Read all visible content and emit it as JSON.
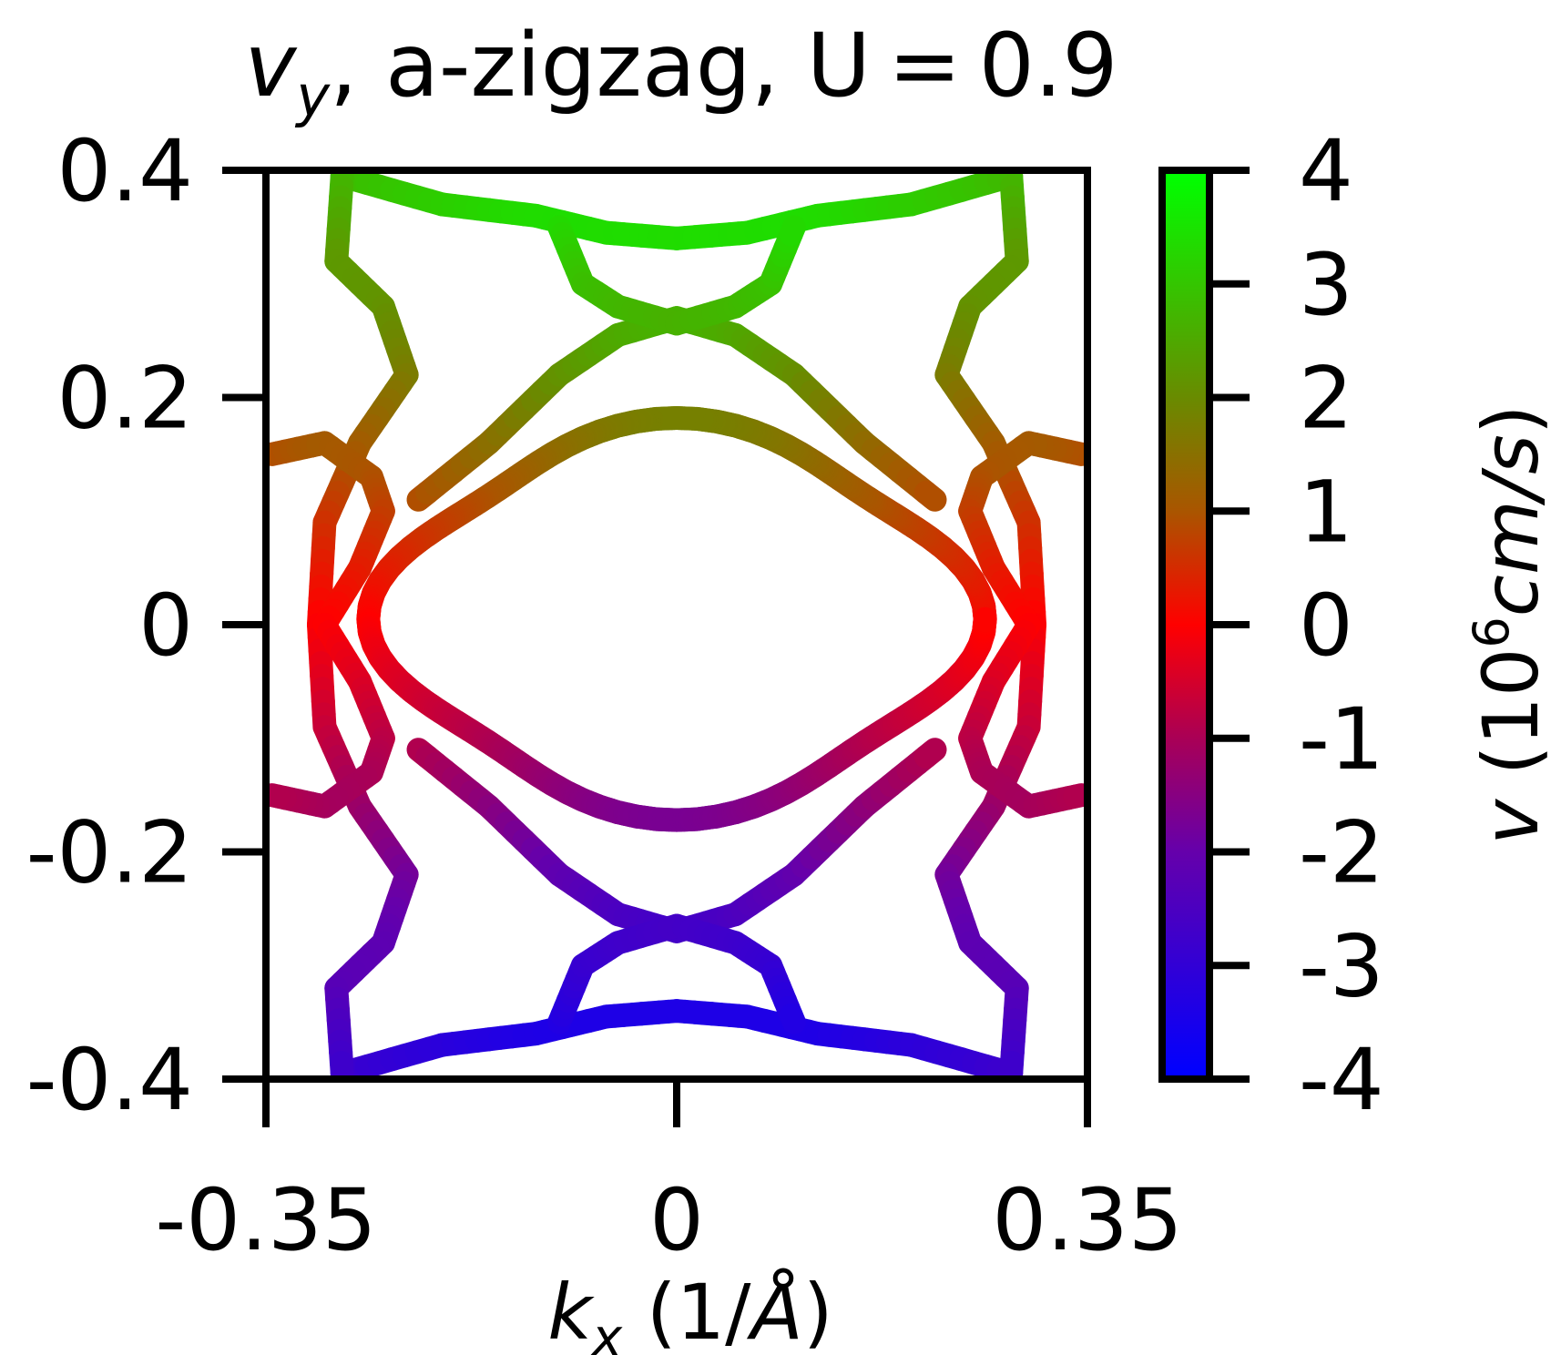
{
  "chart_data": {
    "type": "heatmap",
    "title_parts": {
      "var": "v",
      "sub": "y",
      "rest": ", a-zigzag, U = 0.9"
    },
    "xlabel_parts": {
      "var": "k",
      "sub": "x",
      "rest": " (1/",
      "unit": "Å",
      "close": ")"
    },
    "colorbar_label_parts": {
      "var": "v",
      "open": " (10",
      "exp": "6",
      "unit": "cm/s",
      "close": ")"
    },
    "xlim": [
      -0.35,
      0.35
    ],
    "ylim": [
      -0.4,
      0.4
    ],
    "clim": [
      -4,
      4
    ],
    "x_ticks": [
      -0.35,
      0,
      0.35
    ],
    "x_tick_labels": [
      "-0.35",
      "0",
      "0.35"
    ],
    "y_ticks": [
      -0.4,
      -0.2,
      0,
      0.2,
      0.4
    ],
    "y_tick_labels": [
      "-0.4",
      "-0.2",
      "0",
      "0.2",
      "0.4"
    ],
    "colorbar_ticks": [
      -4,
      -3,
      -2,
      -1,
      0,
      1,
      2,
      3,
      4
    ],
    "colorbar_tick_labels": [
      "-4",
      "-3",
      "-2",
      "-1",
      "0",
      "1",
      "2",
      "3",
      "4"
    ],
    "colormap": [
      {
        "value": -4,
        "color": "#0000ff"
      },
      {
        "value": -2,
        "color": "#6600aa"
      },
      {
        "value": -1,
        "color": "#aa0055"
      },
      {
        "value": 0,
        "color": "#ff0000"
      },
      {
        "value": 1,
        "color": "#aa5500"
      },
      {
        "value": 2,
        "color": "#6a8a00"
      },
      {
        "value": 4,
        "color": "#00ff00"
      }
    ],
    "bands": [
      {
        "name": "central-pocket",
        "kind": "ellipse",
        "cx": 0,
        "cy": 0.005,
        "rx": 0.245,
        "ry": 0.165,
        "wobble": 0.012
      },
      {
        "name": "top-arc",
        "kind": "path",
        "points": [
          [
            -0.285,
            0.395
          ],
          [
            -0.2,
            0.37
          ],
          [
            -0.12,
            0.36
          ],
          [
            -0.06,
            0.345
          ],
          [
            0,
            0.34
          ],
          [
            0.06,
            0.345
          ],
          [
            0.12,
            0.36
          ],
          [
            0.2,
            0.37
          ],
          [
            0.285,
            0.395
          ]
        ]
      },
      {
        "name": "bottom-arc",
        "kind": "path",
        "points": [
          [
            -0.285,
            -0.395
          ],
          [
            -0.2,
            -0.37
          ],
          [
            -0.12,
            -0.36
          ],
          [
            -0.06,
            -0.345
          ],
          [
            0,
            -0.34
          ],
          [
            0.06,
            -0.345
          ],
          [
            0.12,
            -0.36
          ],
          [
            0.2,
            -0.37
          ],
          [
            0.285,
            -0.395
          ]
        ]
      },
      {
        "name": "upper-inner-arc",
        "kind": "path",
        "points": [
          [
            -0.22,
            0.11
          ],
          [
            -0.16,
            0.16
          ],
          [
            -0.1,
            0.22
          ],
          [
            -0.05,
            0.255
          ],
          [
            0,
            0.27
          ],
          [
            0.05,
            0.255
          ],
          [
            0.1,
            0.22
          ],
          [
            0.16,
            0.16
          ],
          [
            0.22,
            0.11
          ]
        ]
      },
      {
        "name": "lower-inner-arc",
        "kind": "path",
        "points": [
          [
            -0.22,
            -0.11
          ],
          [
            -0.16,
            -0.16
          ],
          [
            -0.1,
            -0.22
          ],
          [
            -0.05,
            -0.255
          ],
          [
            0,
            -0.27
          ],
          [
            0.05,
            -0.255
          ],
          [
            0.1,
            -0.22
          ],
          [
            0.16,
            -0.16
          ],
          [
            0.22,
            -0.11
          ]
        ]
      },
      {
        "name": "left-lobe",
        "kind": "path",
        "points": [
          [
            -0.285,
            0.395
          ],
          [
            -0.29,
            0.32
          ],
          [
            -0.25,
            0.28
          ],
          [
            -0.23,
            0.22
          ],
          [
            -0.27,
            0.16
          ],
          [
            -0.3,
            0.09
          ],
          [
            -0.305,
            0
          ],
          [
            -0.3,
            -0.09
          ],
          [
            -0.27,
            -0.16
          ],
          [
            -0.23,
            -0.22
          ],
          [
            -0.25,
            -0.28
          ],
          [
            -0.29,
            -0.32
          ],
          [
            -0.285,
            -0.395
          ]
        ]
      },
      {
        "name": "right-lobe",
        "kind": "path",
        "points": [
          [
            0.285,
            0.395
          ],
          [
            0.29,
            0.32
          ],
          [
            0.25,
            0.28
          ],
          [
            0.23,
            0.22
          ],
          [
            0.27,
            0.16
          ],
          [
            0.3,
            0.09
          ],
          [
            0.305,
            0
          ],
          [
            0.3,
            -0.09
          ],
          [
            0.27,
            -0.16
          ],
          [
            0.23,
            -0.22
          ],
          [
            0.25,
            -0.28
          ],
          [
            0.29,
            -0.32
          ],
          [
            0.285,
            -0.395
          ]
        ]
      },
      {
        "name": "left-edge-loop",
        "kind": "path",
        "points": [
          [
            -0.345,
            0.15
          ],
          [
            -0.3,
            0.16
          ],
          [
            -0.26,
            0.13
          ],
          [
            -0.25,
            0.1
          ],
          [
            -0.27,
            0.05
          ],
          [
            -0.3,
            0
          ],
          [
            -0.27,
            -0.05
          ],
          [
            -0.25,
            -0.1
          ],
          [
            -0.26,
            -0.13
          ],
          [
            -0.3,
            -0.16
          ],
          [
            -0.345,
            -0.15
          ]
        ]
      },
      {
        "name": "right-edge-loop",
        "kind": "path",
        "points": [
          [
            0.345,
            0.15
          ],
          [
            0.3,
            0.16
          ],
          [
            0.26,
            0.13
          ],
          [
            0.25,
            0.1
          ],
          [
            0.27,
            0.05
          ],
          [
            0.3,
            0
          ],
          [
            0.27,
            -0.05
          ],
          [
            0.25,
            -0.1
          ],
          [
            0.26,
            -0.13
          ],
          [
            0.3,
            -0.16
          ],
          [
            0.345,
            -0.15
          ]
        ]
      },
      {
        "name": "neck-upper",
        "kind": "path",
        "points": [
          [
            -0.1,
            0.35
          ],
          [
            -0.08,
            0.3
          ],
          [
            -0.05,
            0.28
          ],
          [
            0,
            0.265
          ],
          [
            0.05,
            0.28
          ],
          [
            0.08,
            0.3
          ],
          [
            0.1,
            0.35
          ]
        ]
      },
      {
        "name": "neck-lower",
        "kind": "path",
        "points": [
          [
            -0.1,
            -0.35
          ],
          [
            -0.08,
            -0.3
          ],
          [
            -0.05,
            -0.28
          ],
          [
            0,
            -0.265
          ],
          [
            0.05,
            -0.28
          ],
          [
            0.08,
            -0.3
          ],
          [
            0.1,
            -0.35
          ]
        ]
      }
    ]
  }
}
